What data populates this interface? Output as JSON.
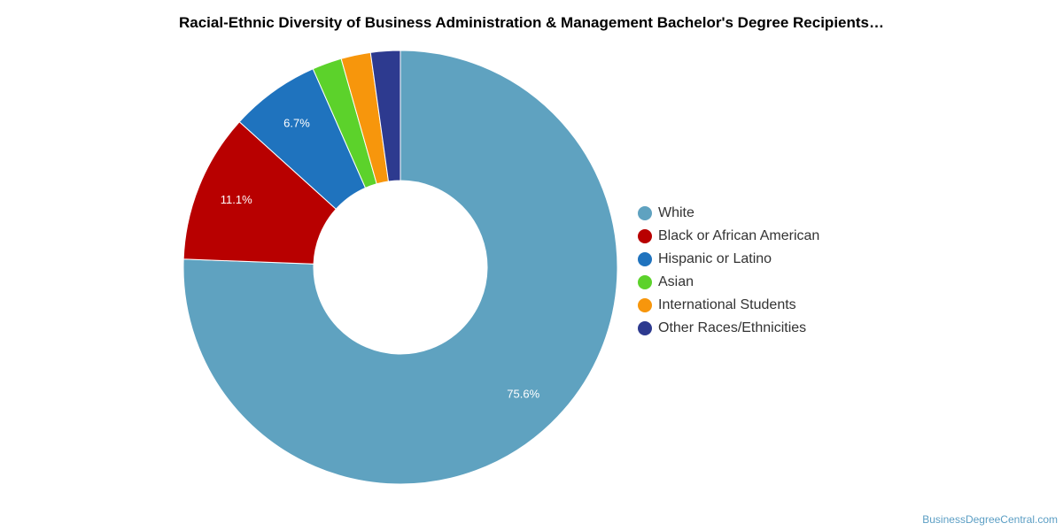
{
  "colors": {
    "white": "#5fa2c0",
    "black_or_african_american": "#b80000",
    "hispanic_or_latino": "#1f73be",
    "asian": "#5cd22b",
    "international_students": "#f7960c",
    "other": "#2d3a8f"
  },
  "credit": "BusinessDegreeCentral.com",
  "chart_data": {
    "type": "pie",
    "donut": true,
    "title": "Racial-Ethnic Diversity of Business Administration & Management Bachelor's Degree Recipients…",
    "legend_position": "right",
    "slices": [
      {
        "label": "White",
        "value": 75.6,
        "color": "#5fa2c0",
        "data_label": "75.6%"
      },
      {
        "label": "Black or African American",
        "value": 11.1,
        "color": "#b80000",
        "data_label": "11.1%"
      },
      {
        "label": "Hispanic or Latino",
        "value": 6.7,
        "color": "#1f73be",
        "data_label": "6.7%"
      },
      {
        "label": "Asian",
        "value": 2.2,
        "color": "#5cd22b",
        "data_label": ""
      },
      {
        "label": "International Students",
        "value": 2.2,
        "color": "#f7960c",
        "data_label": ""
      },
      {
        "label": "Other Races/Ethnicities",
        "value": 2.2,
        "color": "#2d3a8f",
        "data_label": ""
      }
    ]
  }
}
